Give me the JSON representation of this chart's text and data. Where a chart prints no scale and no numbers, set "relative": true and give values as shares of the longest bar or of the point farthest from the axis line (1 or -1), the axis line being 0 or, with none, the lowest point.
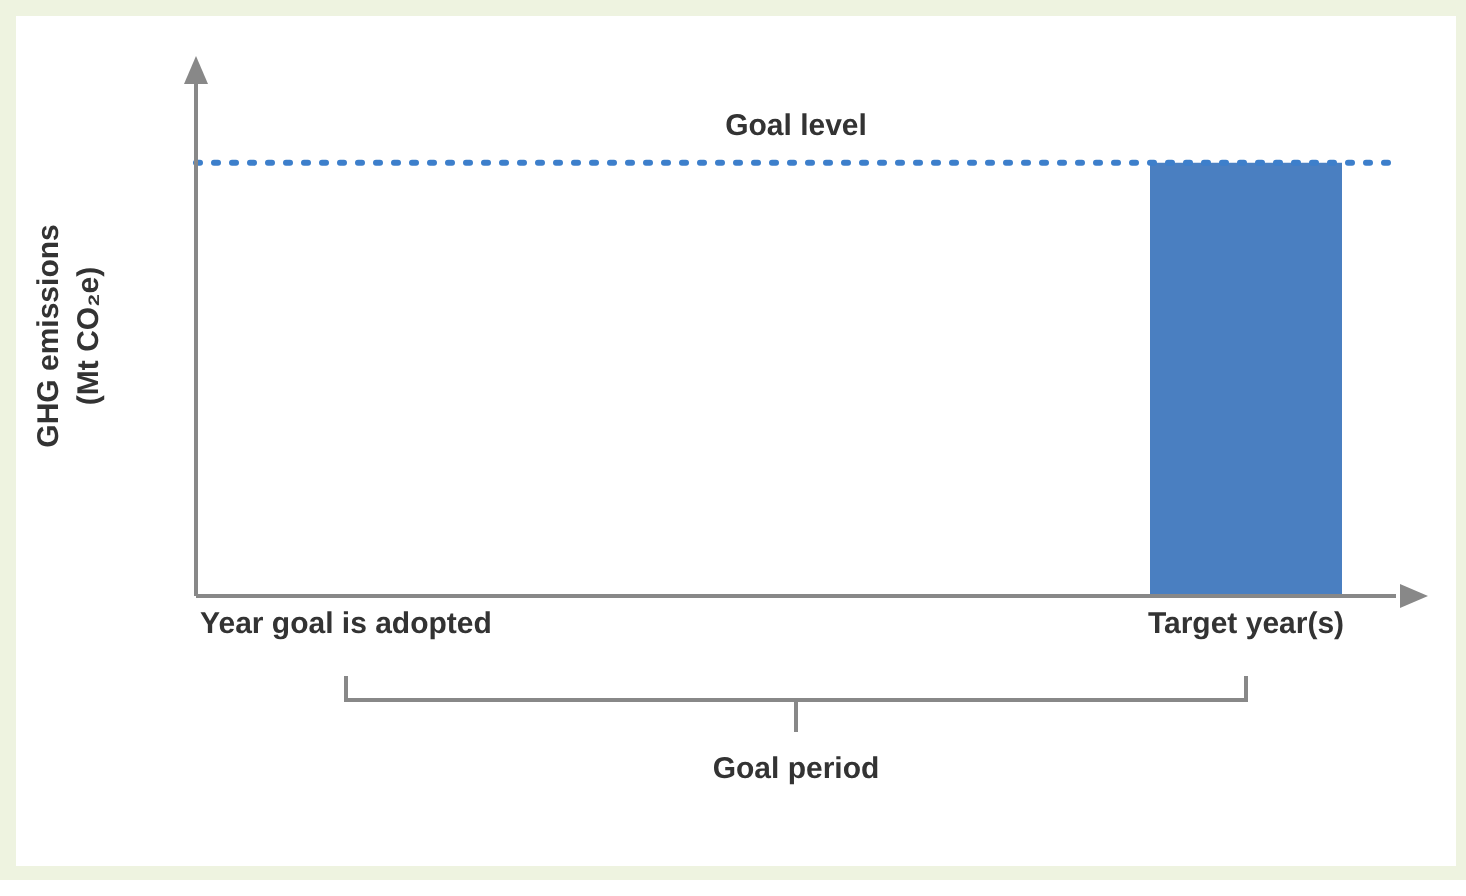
{
  "chart_data": {
    "type": "bar",
    "relative": true,
    "categories": [
      "Year goal is adopted",
      null,
      null,
      "Target year(s)"
    ],
    "values": [
      null,
      null,
      null,
      1
    ],
    "color": "#4a7fc1",
    "ylabel": "GHG emissions (Mt CO₂e)",
    "ref_lines": [
      {
        "axis": "y",
        "value": 1,
        "label": "Goal level",
        "color": "#3d7fcb",
        "line_style": "dotted"
      }
    ],
    "annotations": [
      "Goal period"
    ],
    "grid": false,
    "legend": false
  }
}
